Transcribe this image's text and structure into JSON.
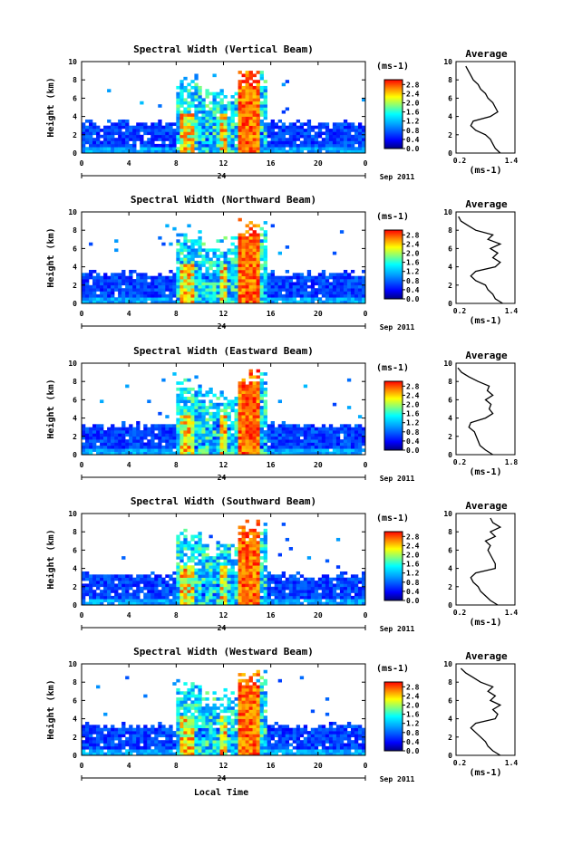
{
  "chart_data": [
    {
      "type": "heatmap",
      "title": "Spectral Width (Vertical Beam)",
      "ylabel": "Height (km)",
      "xticks": [
        "0",
        "4",
        "8",
        "12",
        "16",
        "20",
        "0"
      ],
      "yticks": [
        "0",
        "2",
        "4",
        "6",
        "8",
        "10"
      ],
      "xlim": [
        0,
        24
      ],
      "ylim": [
        0,
        10
      ],
      "date_day": "24",
      "date_month": "Sep 2011",
      "colorbar": {
        "unit": "(ms-1)",
        "ticks": [
          "0.0",
          "0.4",
          "0.8",
          "1.2",
          "1.6",
          "2.0",
          "2.4",
          "2.8"
        ],
        "range": [
          0,
          3.0
        ]
      },
      "profile": {
        "title": "Average",
        "xlabel": "(ms-1)",
        "xticks": [
          "0.2",
          "1.4"
        ],
        "xlim": [
          0.2,
          1.4
        ],
        "ylim": [
          0,
          10
        ],
        "yticks": [
          "0",
          "2",
          "4",
          "6",
          "8",
          "10"
        ],
        "heights": [
          0,
          0.5,
          1,
          1.5,
          2,
          2.5,
          3,
          3.5,
          4,
          4.5,
          5,
          5.5,
          6,
          6.5,
          7,
          7.5,
          8,
          8.5,
          9,
          9.5
        ],
        "values": [
          1.1,
          1.0,
          0.95,
          0.9,
          0.8,
          0.6,
          0.5,
          0.55,
          0.9,
          1.05,
          1.0,
          0.95,
          0.85,
          0.8,
          0.7,
          0.65,
          0.55,
          0.5,
          0.45,
          0.4
        ]
      }
    },
    {
      "type": "heatmap",
      "title": "Spectral Width (Northward Beam)",
      "ylabel": "Height (km)",
      "xticks": [
        "0",
        "4",
        "8",
        "12",
        "16",
        "20",
        "0"
      ],
      "yticks": [
        "0",
        "2",
        "4",
        "6",
        "8",
        "10"
      ],
      "xlim": [
        0,
        24
      ],
      "ylim": [
        0,
        10
      ],
      "date_day": "24",
      "date_month": "Sep 2011",
      "colorbar": {
        "unit": "(ms-1)",
        "ticks": [
          "0.0",
          "0.4",
          "0.8",
          "1.2",
          "1.6",
          "2.0",
          "2.4",
          "2.8"
        ],
        "range": [
          0,
          3.0
        ]
      },
      "profile": {
        "title": "Average",
        "xlabel": "(ms-1)",
        "xticks": [
          "0.2",
          "1.4"
        ],
        "xlim": [
          0.2,
          1.4
        ],
        "ylim": [
          0,
          10
        ],
        "yticks": [
          "0",
          "2",
          "4",
          "6",
          "8",
          "10"
        ],
        "heights": [
          0,
          0.5,
          1,
          1.5,
          2,
          2.5,
          3,
          3.5,
          4,
          4.5,
          5,
          5.5,
          6,
          6.5,
          7,
          7.5,
          8,
          8.5,
          9,
          9.5
        ],
        "values": [
          1.15,
          1.0,
          0.95,
          0.85,
          0.8,
          0.6,
          0.5,
          0.6,
          1.0,
          1.1,
          0.95,
          1.05,
          0.9,
          1.1,
          0.85,
          0.95,
          0.6,
          0.45,
          0.3,
          0.25
        ]
      }
    },
    {
      "type": "heatmap",
      "title": "Spectral Width (Eastward Beam)",
      "ylabel": "Height (km)",
      "xticks": [
        "0",
        "4",
        "8",
        "12",
        "16",
        "20",
        "0"
      ],
      "yticks": [
        "0",
        "2",
        "4",
        "6",
        "8",
        "10"
      ],
      "xlim": [
        0,
        24
      ],
      "ylim": [
        0,
        10
      ],
      "date_day": "24",
      "date_month": "Sep 2011",
      "colorbar": {
        "unit": "(ms-1)",
        "ticks": [
          "0.0",
          "0.4",
          "0.8",
          "1.2",
          "1.6",
          "2.0",
          "2.4",
          "2.8"
        ],
        "range": [
          0,
          3.0
        ]
      },
      "profile": {
        "title": "Average",
        "xlabel": "(ms-1)",
        "xticks": [
          "0.2",
          "1.8"
        ],
        "xlim": [
          0.2,
          1.8
        ],
        "ylim": [
          0,
          10
        ],
        "yticks": [
          "0",
          "2",
          "4",
          "6",
          "8",
          "10"
        ],
        "heights": [
          0,
          0.5,
          1,
          1.5,
          2,
          2.5,
          3,
          3.5,
          4,
          4.5,
          5,
          5.5,
          6,
          6.5,
          7,
          7.5,
          8,
          8.5,
          9,
          9.5
        ],
        "values": [
          1.2,
          1.0,
          0.85,
          0.8,
          0.75,
          0.7,
          0.55,
          0.6,
          1.0,
          1.2,
          1.1,
          1.15,
          1.0,
          1.2,
          1.05,
          1.1,
          0.8,
          0.55,
          0.35,
          0.25
        ]
      }
    },
    {
      "type": "heatmap",
      "title": "Spectral Width (Southward Beam)",
      "ylabel": "Height (km)",
      "xticks": [
        "0",
        "4",
        "8",
        "12",
        "16",
        "20",
        "0"
      ],
      "yticks": [
        "0",
        "2",
        "4",
        "6",
        "8",
        "10"
      ],
      "xlim": [
        0,
        24
      ],
      "ylim": [
        0,
        10
      ],
      "date_day": "24",
      "date_month": "Sep 2011",
      "colorbar": {
        "unit": "(ms-1)",
        "ticks": [
          "0.0",
          "0.4",
          "0.8",
          "1.2",
          "1.6",
          "2.0",
          "2.4",
          "2.8"
        ],
        "range": [
          0,
          3.0
        ]
      },
      "profile": {
        "title": "Average",
        "xlabel": "(ms-1)",
        "xticks": [
          "0.2",
          "1.4"
        ],
        "xlim": [
          0.2,
          1.4
        ],
        "ylim": [
          0,
          10
        ],
        "yticks": [
          "0",
          "2",
          "4",
          "6",
          "8",
          "10"
        ],
        "heights": [
          0,
          0.5,
          1,
          1.5,
          2,
          2.5,
          3,
          3.5,
          4,
          4.5,
          5,
          5.5,
          6,
          6.5,
          7,
          7.5,
          8,
          8.5,
          9,
          9.5
        ],
        "values": [
          1.05,
          0.9,
          0.8,
          0.7,
          0.65,
          0.55,
          0.5,
          0.6,
          1.0,
          1.0,
          0.95,
          0.9,
          0.85,
          0.9,
          0.8,
          1.0,
          0.9,
          1.1,
          0.95,
          0.9
        ]
      }
    },
    {
      "type": "heatmap",
      "title": "Spectral Width (Westward Beam)",
      "ylabel": "Height (km)",
      "xticks": [
        "0",
        "4",
        "8",
        "12",
        "16",
        "20",
        "0"
      ],
      "yticks": [
        "0",
        "2",
        "4",
        "6",
        "8",
        "10"
      ],
      "xlim": [
        0,
        24
      ],
      "ylim": [
        0,
        10
      ],
      "date_day": "24",
      "date_month": "Sep 2011",
      "colorbar": {
        "unit": "(ms-1)",
        "ticks": [
          "0.0",
          "0.4",
          "0.8",
          "1.2",
          "1.6",
          "2.0",
          "2.4",
          "2.8"
        ],
        "range": [
          0,
          3.0
        ]
      },
      "profile": {
        "title": "Average",
        "xlabel": "(ms-1)",
        "xticks": [
          "0.2",
          "1.4"
        ],
        "xlim": [
          0.2,
          1.4
        ],
        "ylim": [
          0,
          10
        ],
        "yticks": [
          "0",
          "2",
          "4",
          "6",
          "8",
          "10"
        ],
        "heights": [
          0,
          0.5,
          1,
          1.5,
          2,
          2.5,
          3,
          3.5,
          4,
          4.5,
          5,
          5.5,
          6,
          6.5,
          7,
          7.5,
          8,
          8.5,
          9,
          9.5
        ],
        "values": [
          1.1,
          0.95,
          0.85,
          0.8,
          0.7,
          0.6,
          0.5,
          0.6,
          1.0,
          1.05,
          0.95,
          1.1,
          0.9,
          1.0,
          0.85,
          0.95,
          0.7,
          0.55,
          0.4,
          0.3
        ]
      }
    }
  ],
  "xlabel": "Local Time"
}
